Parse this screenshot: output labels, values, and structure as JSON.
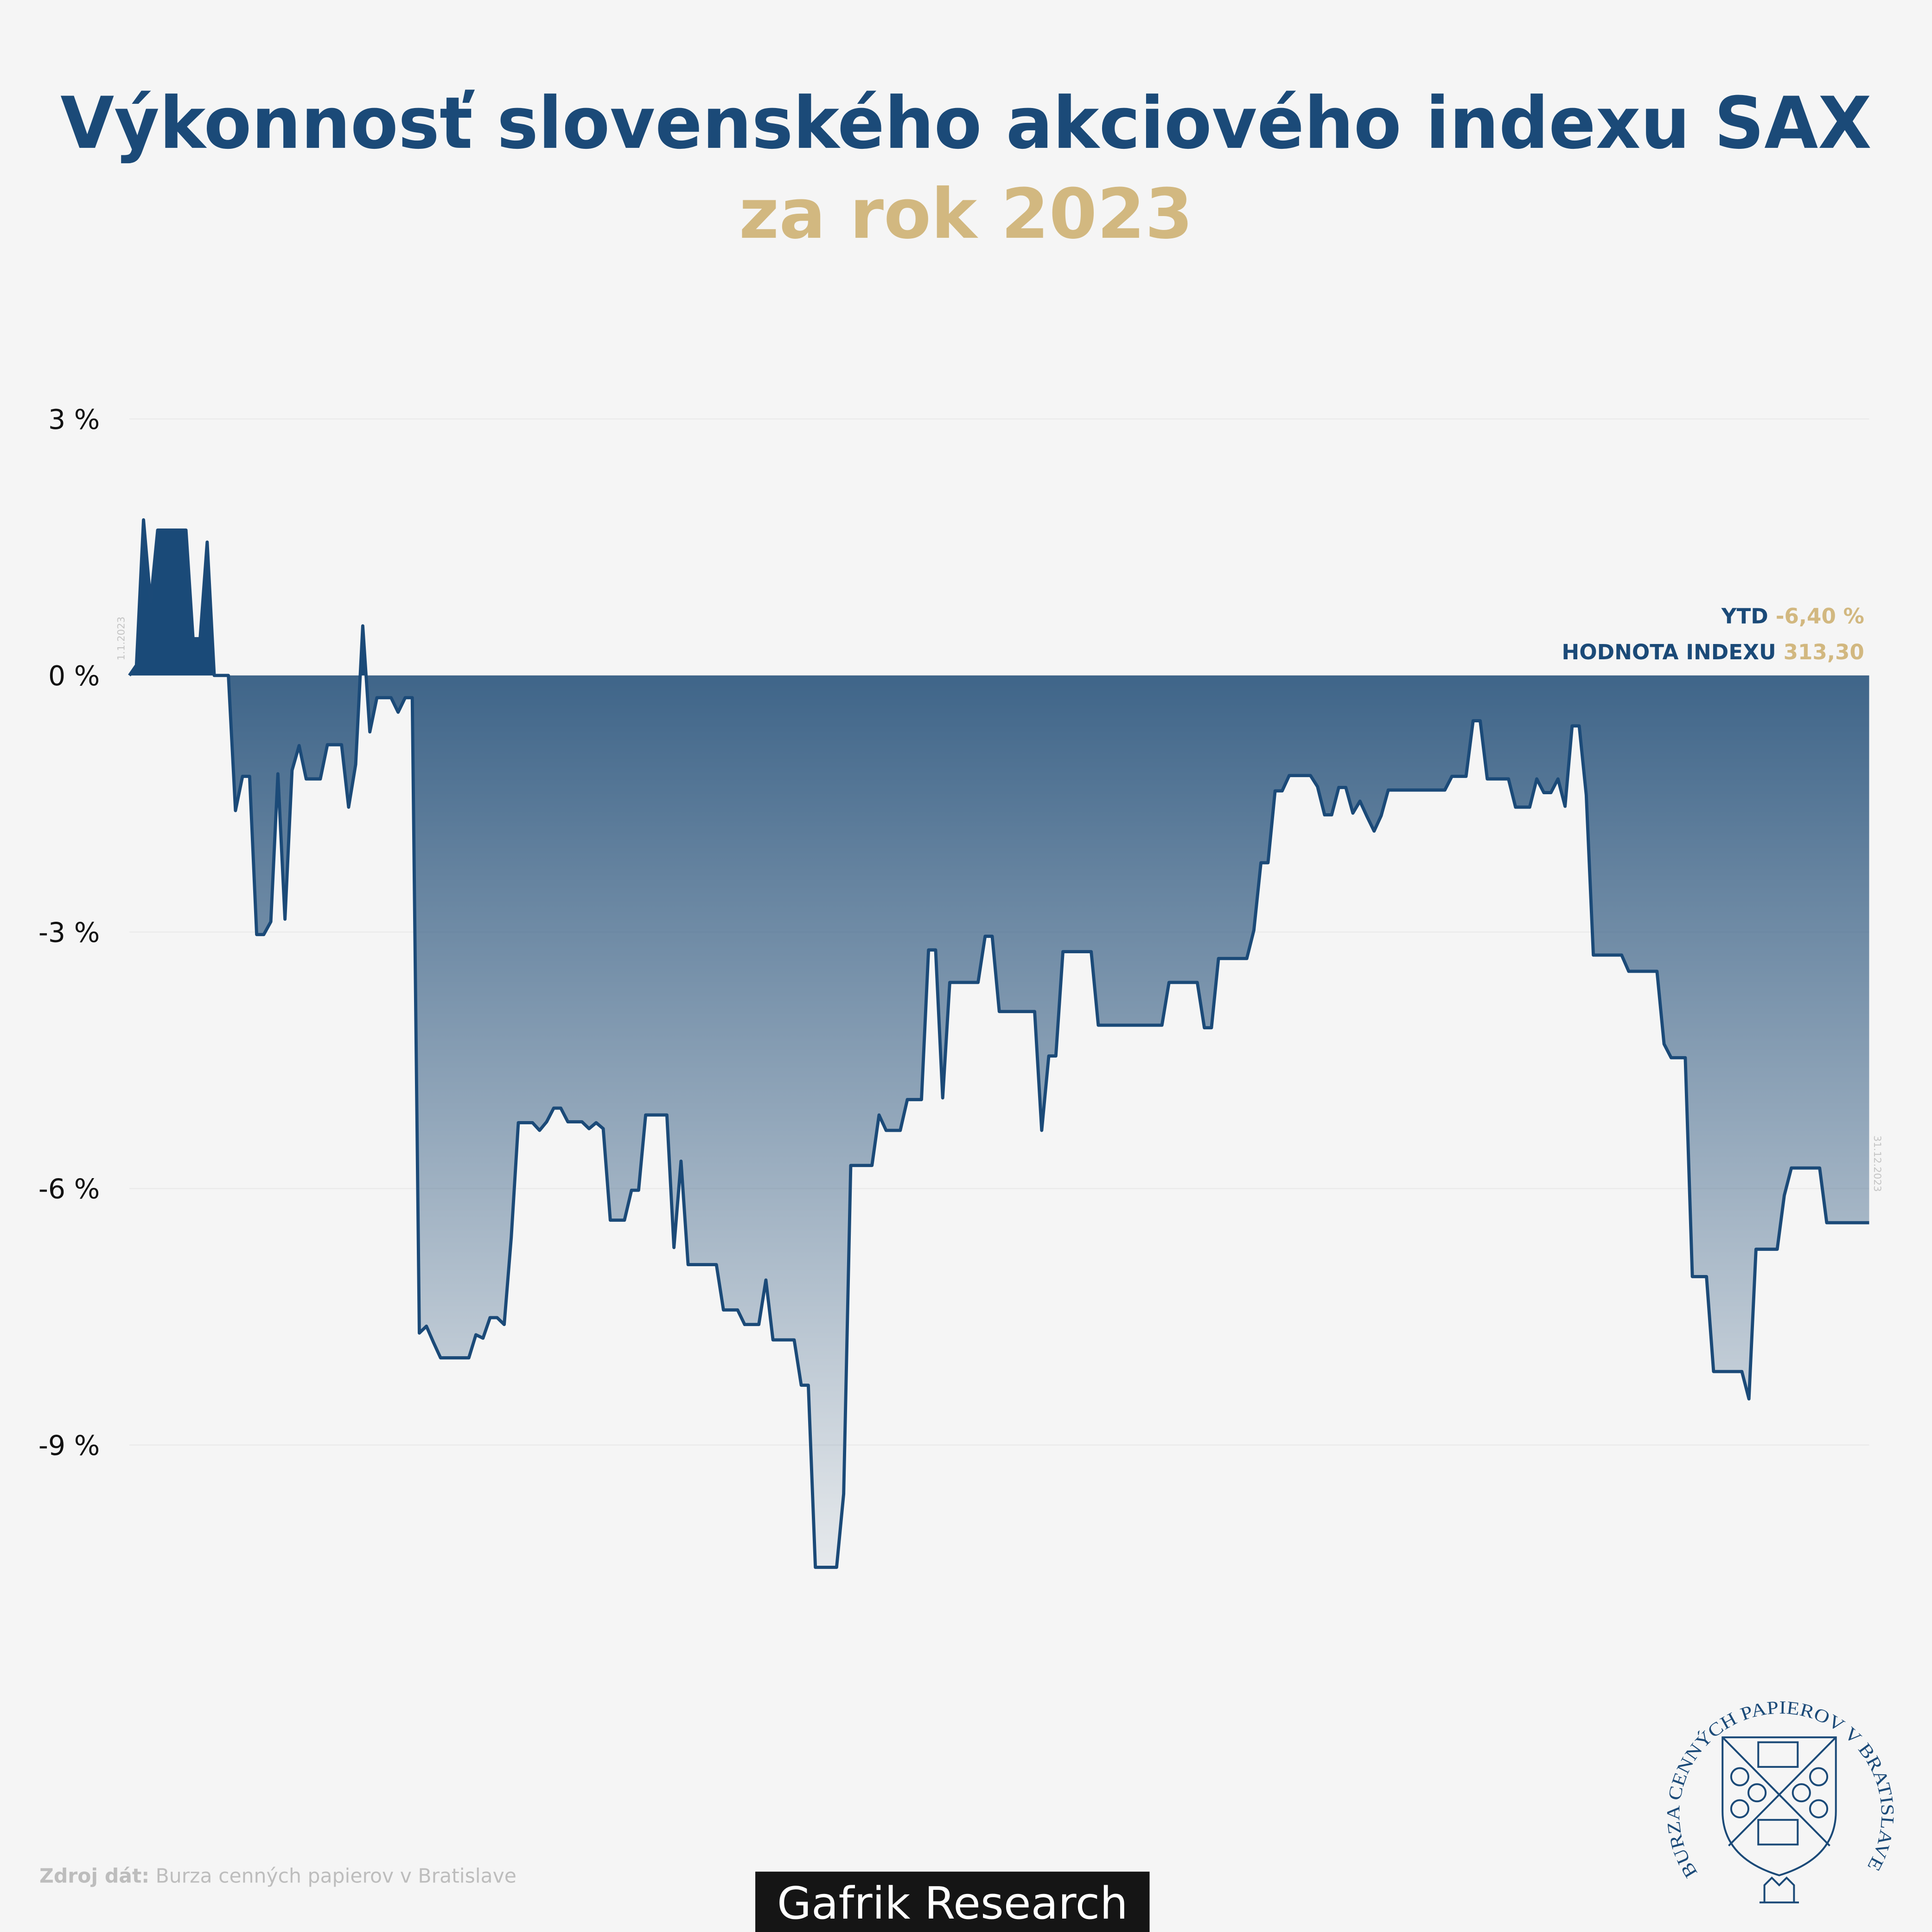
{
  "chart_data": {
    "type": "area",
    "title": "Výkonnosť slovenského akciového indexu SAX",
    "subtitle": "za rok 2023",
    "color": "#1b4a78",
    "categories": [
      "1.1.2023",
      null,
      null,
      null,
      null,
      null,
      null,
      null,
      null,
      null,
      null,
      null,
      null,
      null,
      null,
      null,
      null,
      null,
      null,
      null,
      null,
      null,
      null,
      null,
      null,
      null,
      null,
      null,
      null,
      null,
      null,
      null,
      null,
      null,
      null,
      null,
      null,
      null,
      null,
      null,
      null,
      null,
      null,
      null,
      null,
      null,
      null,
      null,
      null,
      null,
      null,
      null,
      null,
      null,
      null,
      null,
      null,
      null,
      null,
      null,
      null,
      null,
      null,
      null,
      null,
      null,
      null,
      null,
      null,
      null,
      null,
      null,
      null,
      null,
      null,
      null,
      null,
      null,
      null,
      null,
      null,
      null,
      null,
      null,
      null,
      null,
      null,
      null,
      null,
      null,
      null,
      null,
      null,
      null,
      null,
      null,
      null,
      null,
      null,
      null,
      null,
      null,
      null,
      null,
      null,
      null,
      null,
      null,
      null,
      null,
      null,
      null,
      null,
      null,
      null,
      null,
      null,
      null,
      null,
      null,
      null,
      null,
      null,
      null,
      null,
      null,
      null,
      null,
      null,
      null,
      null,
      null,
      null,
      null,
      null,
      null,
      null,
      null,
      null,
      null,
      null,
      null,
      null,
      null,
      null,
      null,
      null,
      null,
      null,
      null,
      null,
      null,
      null,
      null,
      null,
      null,
      null,
      null,
      null,
      null,
      null,
      null,
      null,
      null,
      null,
      null,
      null,
      null,
      null,
      null,
      null,
      null,
      null,
      null,
      null,
      null,
      null,
      null,
      null,
      null,
      null,
      null,
      null,
      null,
      null,
      null,
      null,
      null,
      null,
      null,
      null,
      null,
      null,
      null,
      null,
      null,
      null,
      null,
      null,
      null,
      null,
      null,
      null,
      null,
      null,
      null,
      null,
      null,
      null,
      null,
      null,
      null,
      null,
      null,
      null,
      null,
      null,
      null,
      null,
      null,
      null,
      null,
      null,
      null,
      null,
      null,
      null,
      null,
      null,
      null,
      null,
      null,
      null,
      null,
      null,
      null,
      null,
      null,
      null,
      null,
      null,
      null,
      null,
      null,
      null,
      null,
      "31.12.2023"
    ],
    "values": [
      0,
      0.12,
      1.82,
      0.86,
      1.7,
      1.7,
      1.7,
      1.7,
      1.7,
      0.43,
      0.43,
      1.56,
      0,
      0,
      0,
      -1.58,
      -1.18,
      -1.18,
      -3.03,
      -3.03,
      -2.88,
      -1.15,
      -2.85,
      -1.11,
      -0.82,
      -1.21,
      -1.21,
      -1.21,
      -0.81,
      -0.81,
      -0.81,
      -1.54,
      -1.04,
      0.58,
      -0.66,
      -0.26,
      -0.26,
      -0.26,
      -0.43,
      -0.26,
      -0.26,
      -7.69,
      -7.61,
      -7.8,
      -7.98,
      -7.98,
      -7.98,
      -7.98,
      -7.98,
      -7.71,
      -7.75,
      -7.51,
      -7.51,
      -7.59,
      -6.57,
      -5.23,
      -5.23,
      -5.23,
      -5.32,
      -5.22,
      -5.06,
      -5.06,
      -5.22,
      -5.22,
      -5.22,
      -5.3,
      -5.23,
      -5.3,
      -6.37,
      -6.37,
      -6.37,
      -6.02,
      -6.02,
      -5.14,
      -5.14,
      -5.14,
      -5.14,
      -6.69,
      -5.68,
      -6.89,
      -6.89,
      -6.89,
      -6.89,
      -6.89,
      -7.42,
      -7.42,
      -7.42,
      -7.59,
      -7.59,
      -7.59,
      -7.07,
      -7.77,
      -7.77,
      -7.77,
      -7.77,
      -8.3,
      -8.3,
      -10.43,
      -10.43,
      -10.43,
      -10.43,
      -9.57,
      -5.73,
      -5.73,
      -5.73,
      -5.73,
      -5.14,
      -5.32,
      -5.32,
      -5.32,
      -4.96,
      -4.96,
      -4.96,
      -3.21,
      -3.21,
      -4.94,
      -3.59,
      -3.59,
      -3.59,
      -3.59,
      -3.59,
      -3.05,
      -3.05,
      -3.93,
      -3.93,
      -3.93,
      -3.93,
      -3.93,
      -3.93,
      -5.32,
      -4.45,
      -4.45,
      -3.23,
      -3.23,
      -3.23,
      -3.23,
      -3.23,
      -4.09,
      -4.09,
      -4.09,
      -4.09,
      -4.09,
      -4.09,
      -4.09,
      -4.09,
      -4.09,
      -4.09,
      -3.59,
      -3.59,
      -3.59,
      -3.59,
      -3.59,
      -4.12,
      -4.12,
      -3.31,
      -3.31,
      -3.31,
      -3.31,
      -3.31,
      -2.98,
      -2.19,
      -2.19,
      -1.35,
      -1.35,
      -1.17,
      -1.17,
      -1.17,
      -1.17,
      -1.3,
      -1.63,
      -1.63,
      -1.31,
      -1.31,
      -1.61,
      -1.47,
      -1.65,
      -1.82,
      -1.64,
      -1.34,
      -1.34,
      -1.34,
      -1.34,
      -1.34,
      -1.34,
      -1.34,
      -1.34,
      -1.34,
      -1.18,
      -1.18,
      -1.18,
      -0.53,
      -0.53,
      -1.21,
      -1.21,
      -1.21,
      -1.21,
      -1.54,
      -1.54,
      -1.54,
      -1.21,
      -1.37,
      -1.37,
      -1.21,
      -1.53,
      -0.59,
      -0.59,
      -1.4,
      -3.27,
      -3.27,
      -3.27,
      -3.27,
      -3.27,
      -3.46,
      -3.46,
      -3.46,
      -3.46,
      -3.46,
      -4.31,
      -4.47,
      -4.47,
      -4.47,
      -7.03,
      -7.03,
      -7.03,
      -8.14,
      -8.14,
      -8.14,
      -8.14,
      -8.14,
      -8.46,
      -6.71,
      -6.71,
      -6.71,
      -6.71,
      -6.08,
      -5.76,
      -5.76,
      -5.76,
      -5.76,
      -5.76,
      -6.4,
      -6.4,
      -6.4,
      -6.4,
      -6.4,
      -6.4,
      -6.4
    ],
    "ylim": [
      -12,
      3
    ],
    "yticks": [
      {
        "value": 3,
        "label": "3 %"
      },
      {
        "value": 0,
        "label": "0 %"
      },
      {
        "value": -3,
        "label": "-3 %"
      },
      {
        "value": -6,
        "label": "-6 %"
      },
      {
        "value": -9,
        "label": "-9 %"
      }
    ],
    "grid": true,
    "annotations": {
      "ytd_label": "YTD",
      "ytd_value": "-6,40 %",
      "index_label": "HODNOTA INDEXU",
      "index_value": "313,30"
    }
  },
  "source_label": "Zdroj dát:",
  "source": "Burza cenných papierov v Bratislave",
  "branding": "Gafrik Research",
  "logo_text": "BURZA CENNÝCH PAPIEROV V BRATISLAVE"
}
